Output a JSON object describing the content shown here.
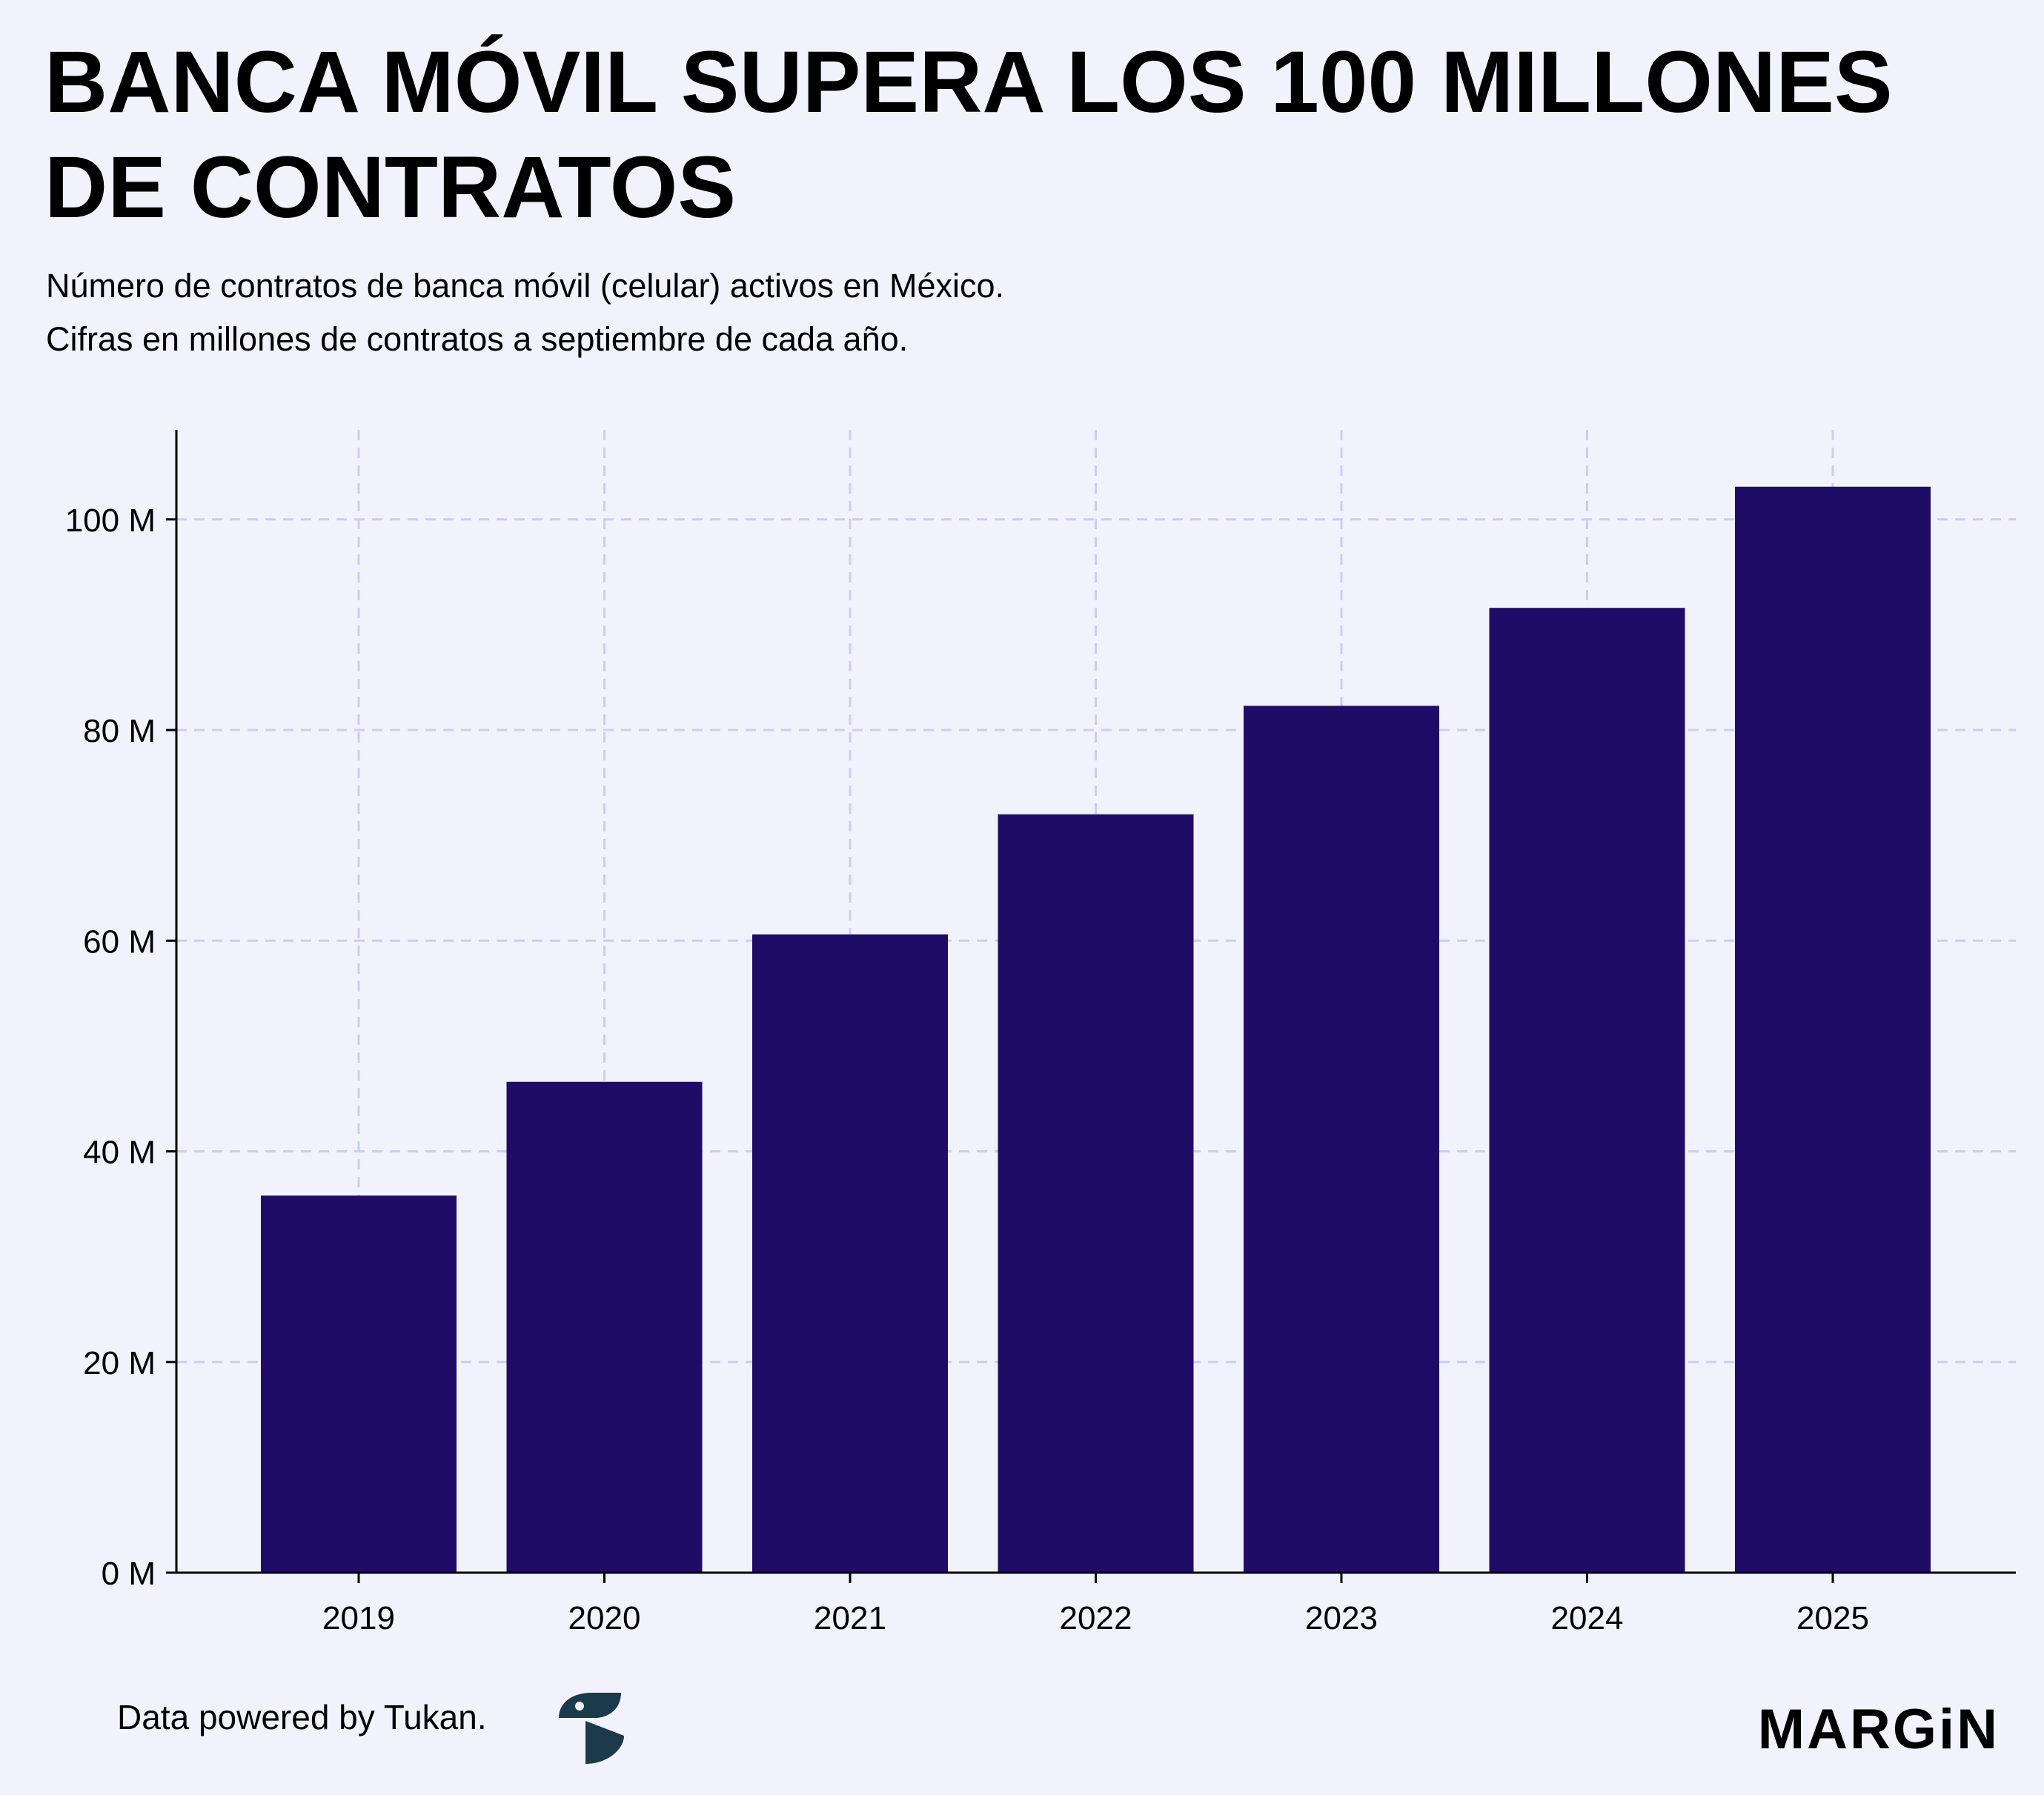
{
  "header": {
    "title": "BANCA MÓVIL SUPERA LOS 100 MILLONES DE CONTRATOS",
    "subtitle_line1": "Número de contratos de banca móvil (celular) activos en México.",
    "subtitle_line2": "Cifras en millones de contratos a septiembre de cada año."
  },
  "footer": {
    "credit": "Data powered by Tukan.",
    "tukan_logo_icon": "tukan-logo-icon",
    "brand": "MARGiN"
  },
  "colors": {
    "background": "#f2f2fd",
    "bar": "#1f0c66",
    "grid": "#c9cdfa",
    "axis": "#000000",
    "logo": "#1b3a4b"
  },
  "chart_data": {
    "type": "bar",
    "categories": [
      "2019",
      "2020",
      "2021",
      "2022",
      "2023",
      "2024",
      "2025"
    ],
    "values": [
      35.8,
      46.6,
      60.6,
      72.0,
      82.3,
      91.6,
      103.1
    ],
    "unit_suffix": " M",
    "yticks": [
      0,
      20,
      40,
      60,
      80,
      100
    ],
    "ytick_labels": [
      "0 M",
      "20 M",
      "40 M",
      "60 M",
      "80 M",
      "100 M"
    ],
    "ylim": [
      0,
      108.5
    ],
    "xlabel": "",
    "ylabel": "",
    "grid": true,
    "grid_style": "dashed"
  }
}
